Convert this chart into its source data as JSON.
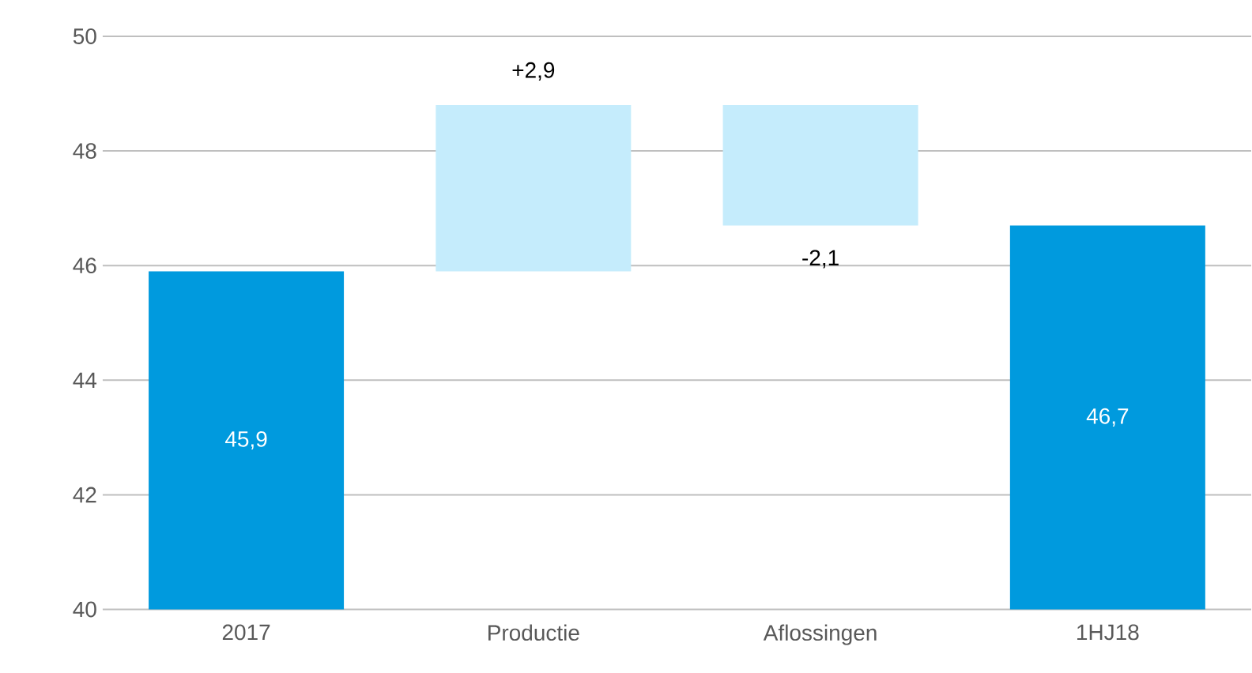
{
  "chart_data": {
    "type": "bar",
    "categories": [
      "2017",
      "Productie",
      "Aflossingen",
      "1HJ18"
    ],
    "values": [
      45.9,
      2.9,
      -2.1,
      46.7
    ],
    "base": [
      null,
      45.9,
      48.8,
      null
    ],
    "colors": [
      "#009ade",
      "#c5ecfc",
      "#c5ecfc",
      "#009ade"
    ],
    "value_labels": [
      "45,9",
      "+2,9",
      "-2,1",
      "46,7"
    ],
    "ylim": [
      40,
      50
    ],
    "yticks": [
      40,
      42,
      44,
      46,
      48,
      50
    ],
    "grid": "y"
  }
}
